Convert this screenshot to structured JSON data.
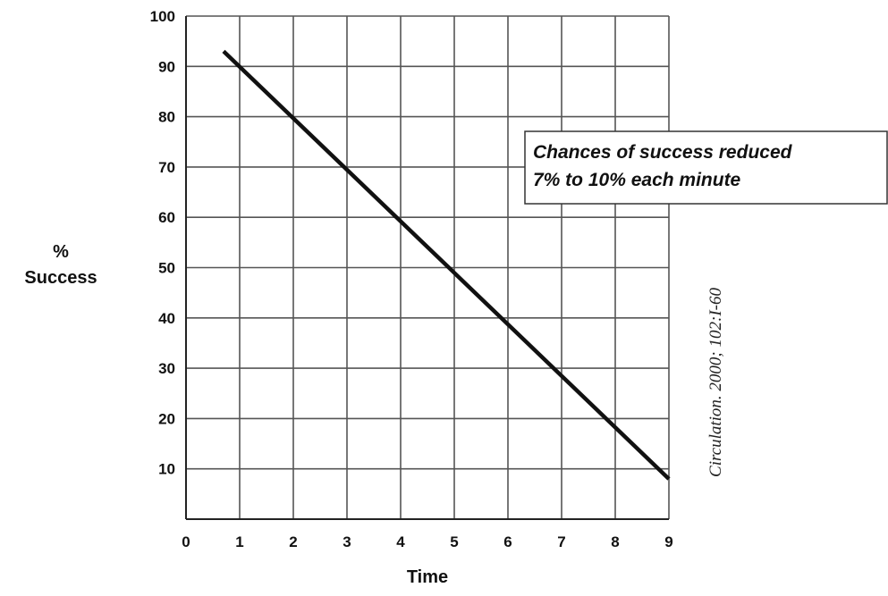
{
  "chart_data": {
    "type": "line",
    "title": "",
    "xlabel": "Time",
    "ylabel_line1": "%",
    "ylabel_line2": "Success",
    "xlim": [
      0,
      9
    ],
    "ylim": [
      0,
      100
    ],
    "x_ticks": [
      0,
      1,
      2,
      3,
      4,
      5,
      6,
      7,
      8,
      9
    ],
    "y_ticks": [
      10,
      20,
      30,
      40,
      50,
      60,
      70,
      80,
      90,
      100
    ],
    "grid": true,
    "series": [
      {
        "x": [
          0.7,
          9.0
        ],
        "y": [
          93,
          8
        ],
        "color": "#111111"
      }
    ],
    "annotation": {
      "line1": "Chances of success reduced",
      "line2": "7% to 10% each minute"
    },
    "citation": "Circulation. 2000; 102:I-60"
  }
}
